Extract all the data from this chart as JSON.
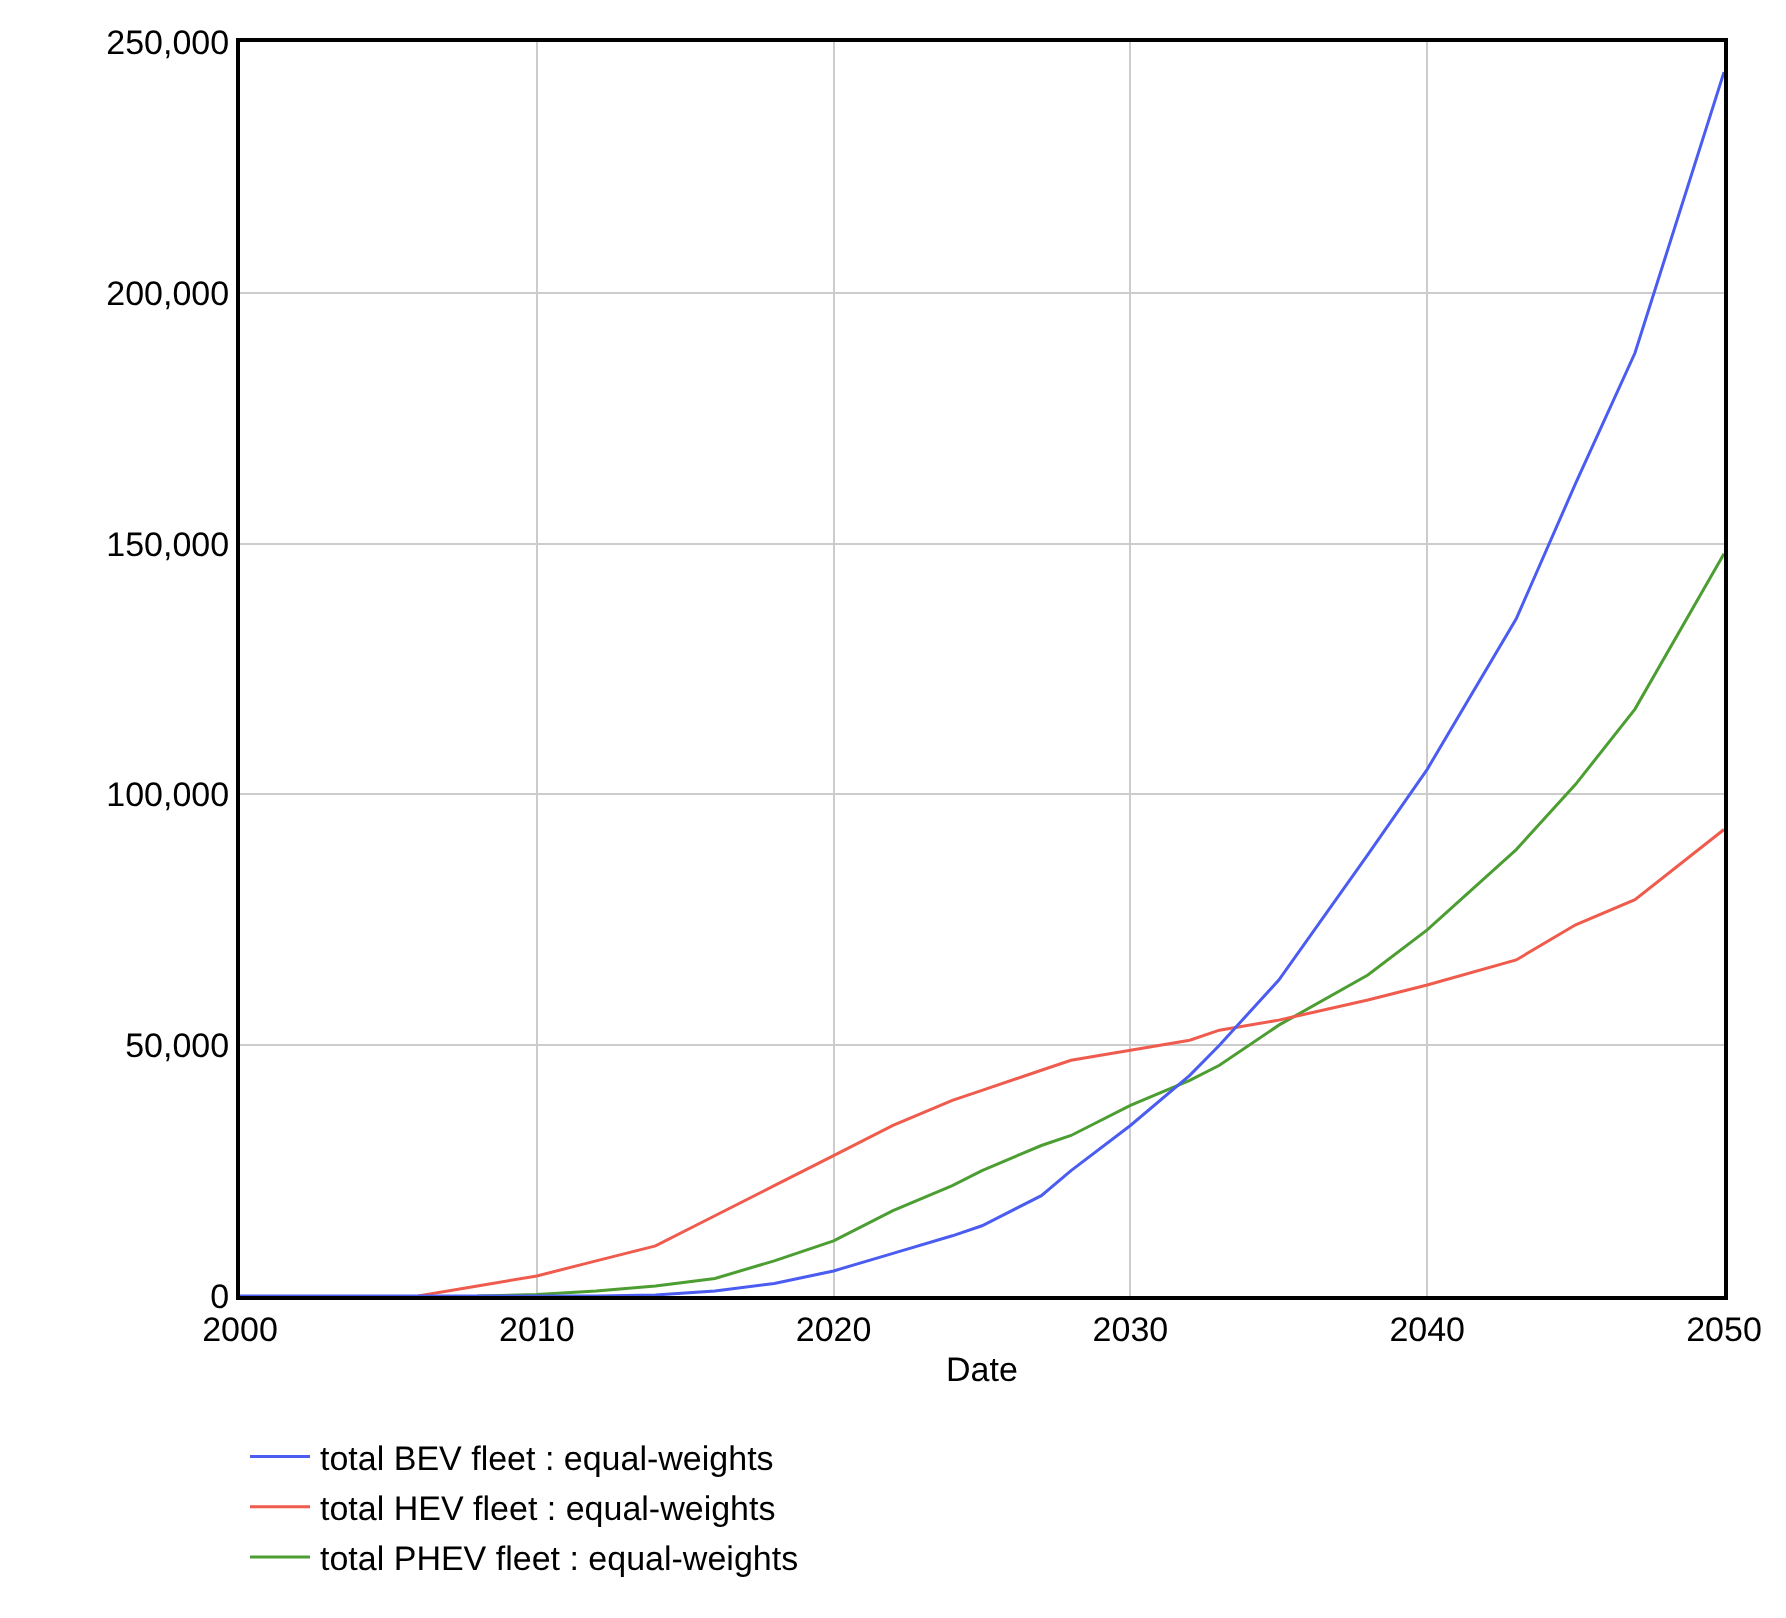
{
  "chart_data": {
    "type": "line",
    "xlabel": "Date",
    "xlim": [
      2000,
      2050
    ],
    "ylim": [
      0,
      250000
    ],
    "xticks": [
      2000,
      2010,
      2020,
      2030,
      2040,
      2050
    ],
    "yticks": [
      {
        "value": 0,
        "label": "0"
      },
      {
        "value": 50000,
        "label": "50,000"
      },
      {
        "value": 100000,
        "label": "100,000"
      },
      {
        "value": 150000,
        "label": "150,000"
      },
      {
        "value": 200000,
        "label": "200,000"
      },
      {
        "value": 250000,
        "label": "250,000"
      }
    ],
    "grid": true,
    "legend": "bottom",
    "marker": "none",
    "line_style": "solid",
    "x": [
      2000,
      2006,
      2008,
      2010,
      2012,
      2014,
      2016,
      2018,
      2020,
      2022,
      2024,
      2025,
      2027,
      2028,
      2030,
      2032,
      2033,
      2035,
      2038,
      2040,
      2043,
      2045,
      2047,
      2050
    ],
    "series": [
      {
        "name": "total BEV fleet : equal-weights",
        "color": "#4b5cf0",
        "values": [
          0,
          0,
          0,
          0,
          0,
          200,
          1000,
          2500,
          5000,
          8500,
          12000,
          14000,
          20000,
          25000,
          34000,
          44000,
          50000,
          63000,
          88000,
          105000,
          135000,
          162000,
          188000,
          244000
        ]
      },
      {
        "name": "total HEV fleet : equal-weights",
        "color": "#ef5b4c",
        "values": [
          null,
          0,
          2000,
          4000,
          7000,
          10000,
          16000,
          22000,
          28000,
          34000,
          39000,
          41000,
          45000,
          47000,
          49000,
          51000,
          53000,
          55000,
          59000,
          62000,
          67000,
          74000,
          79000,
          93000
        ]
      },
      {
        "name": "total PHEV fleet : equal-weights",
        "color": "#4c9e33",
        "values": [
          null,
          null,
          0,
          300,
          1000,
          2000,
          3500,
          7000,
          11000,
          17000,
          22000,
          25000,
          30000,
          32000,
          38000,
          43000,
          46000,
          54000,
          64000,
          73000,
          89000,
          102000,
          117000,
          148000
        ]
      }
    ]
  }
}
